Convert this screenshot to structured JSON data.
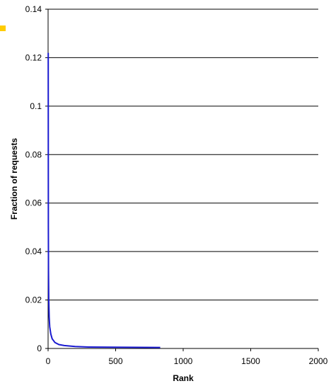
{
  "chart_data": {
    "type": "line",
    "title": "",
    "xlabel": "Rank",
    "ylabel": "Fraction of requests",
    "xlim": [
      0,
      2000
    ],
    "ylim": [
      0,
      0.14
    ],
    "x_ticks": [
      0,
      500,
      1000,
      1500,
      2000
    ],
    "x_tick_labels": [
      "0",
      "500",
      "1000",
      "1500",
      "2000"
    ],
    "y_ticks": [
      0,
      0.02,
      0.04,
      0.06,
      0.08,
      0.1,
      0.12,
      0.14
    ],
    "y_tick_labels": [
      "0",
      "0.02",
      "0.04",
      "0.06",
      "0.08",
      "0.1",
      "0.12",
      "0.14"
    ],
    "grid": "horizontal",
    "legend": "none",
    "series": [
      {
        "color": "#1a1ad0",
        "x": [
          1,
          2,
          3,
          5,
          8,
          12,
          20,
          30,
          50,
          80,
          120,
          200,
          300,
          500,
          830
        ],
        "y": [
          0.122,
          0.05,
          0.032,
          0.02,
          0.013,
          0.009,
          0.006,
          0.004,
          0.0025,
          0.0016,
          0.0012,
          0.0008,
          0.0006,
          0.0005,
          0.0004
        ]
      }
    ],
    "marker_color": "#ffcc00"
  }
}
